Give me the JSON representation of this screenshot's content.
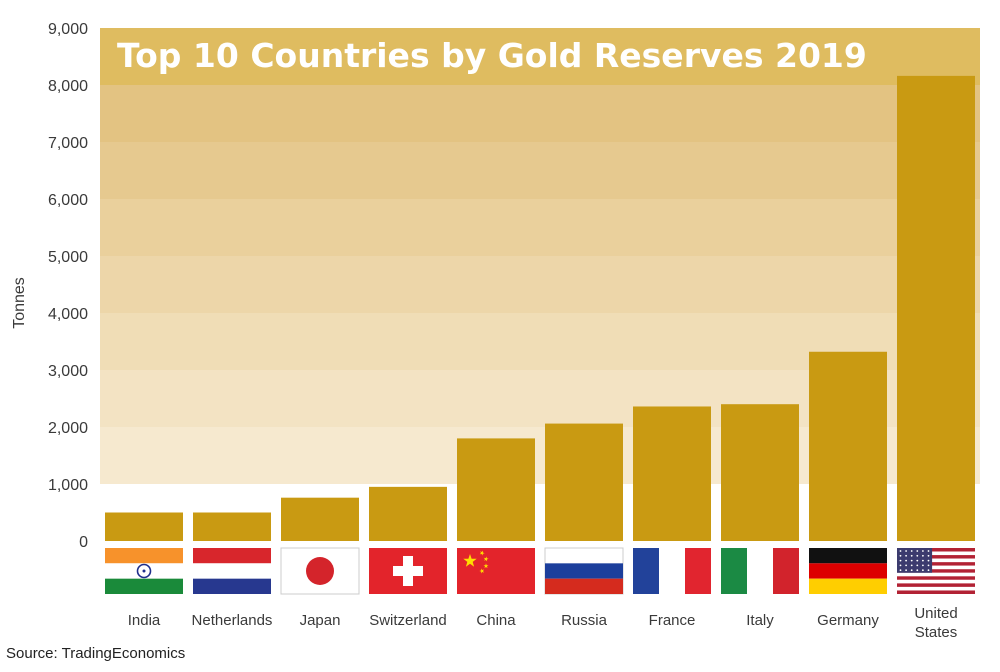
{
  "chart_data": {
    "type": "bar",
    "title": "Top 10 Countries by Gold Reserves 2019",
    "ylabel": "Tonnes",
    "xlabel": "",
    "ylim": [
      0,
      9000
    ],
    "yticks": [
      0,
      1000,
      2000,
      3000,
      4000,
      5000,
      6000,
      7000,
      8000,
      9000
    ],
    "ytick_labels": [
      "0",
      "1,000",
      "2,000",
      "3,000",
      "4,000",
      "5,000",
      "6,000",
      "7,000",
      "8,000",
      "9,000"
    ],
    "categories": [
      "India",
      "Netherlands",
      "Japan",
      "Switzerland",
      "China",
      "Russia",
      "France",
      "Italy",
      "Germany",
      "United States"
    ],
    "category_labels": [
      [
        "India"
      ],
      [
        "Netherlands"
      ],
      [
        "Japan"
      ],
      [
        "Switzerland"
      ],
      [
        "China"
      ],
      [
        "Russia"
      ],
      [
        "France"
      ],
      [
        "Italy"
      ],
      [
        "Germany"
      ],
      [
        "United",
        "States"
      ]
    ],
    "values": [
      500,
      500,
      760,
      950,
      1800,
      2060,
      2360,
      2400,
      3320,
      8160
    ],
    "bar_color": "#c99a12",
    "title_band_color": "#dfbc60",
    "background_bands": [
      "#f8eed8",
      "#f6e9cf",
      "#f3e3c3",
      "#f0ddb6",
      "#edd6a9",
      "#ead09c",
      "#e6c98f",
      "#e3c382",
      "#dfbc60"
    ],
    "flags": [
      "india-flag",
      "netherlands-flag",
      "japan-flag",
      "switzerland-flag",
      "china-flag",
      "russia-flag",
      "france-flag",
      "italy-flag",
      "germany-flag",
      "usa-flag"
    ]
  },
  "source": "Source: TradingEconomics"
}
